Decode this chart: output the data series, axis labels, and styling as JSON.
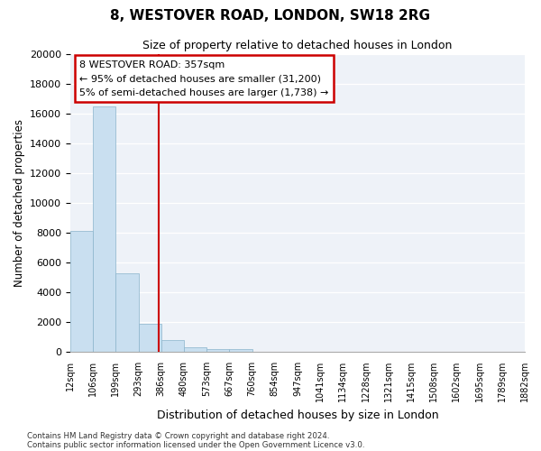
{
  "title": "8, WESTOVER ROAD, LONDON, SW18 2RG",
  "subtitle": "Size of property relative to detached houses in London",
  "xlabel": "Distribution of detached houses by size in London",
  "ylabel": "Number of detached properties",
  "bar_values": [
    8100,
    16500,
    5300,
    1850,
    800,
    280,
    200,
    200,
    0,
    0,
    0,
    0,
    0,
    0,
    0,
    0,
    0,
    0,
    0,
    0
  ],
  "bin_labels": [
    "12sqm",
    "106sqm",
    "199sqm",
    "293sqm",
    "386sqm",
    "480sqm",
    "573sqm",
    "667sqm",
    "760sqm",
    "854sqm",
    "947sqm",
    "1041sqm",
    "1134sqm",
    "1228sqm",
    "1321sqm",
    "1415sqm",
    "1508sqm",
    "1602sqm",
    "1695sqm",
    "1789sqm",
    "1882sqm"
  ],
  "bar_color": "#c9dff0",
  "bar_edge_color": "#8ab4cc",
  "vline_x": 3.88,
  "vline_color": "#cc0000",
  "annotation_line1": "8 WESTOVER ROAD: 357sqm",
  "annotation_line2": "← 95% of detached houses are smaller (31,200)",
  "annotation_line3": "5% of semi-detached houses are larger (1,738) →",
  "ylim": [
    0,
    20000
  ],
  "yticks": [
    0,
    2000,
    4000,
    6000,
    8000,
    10000,
    12000,
    14000,
    16000,
    18000,
    20000
  ],
  "footnote1": "Contains HM Land Registry data © Crown copyright and database right 2024.",
  "footnote2": "Contains public sector information licensed under the Open Government Licence v3.0.",
  "bg_color": "#eef2f8"
}
